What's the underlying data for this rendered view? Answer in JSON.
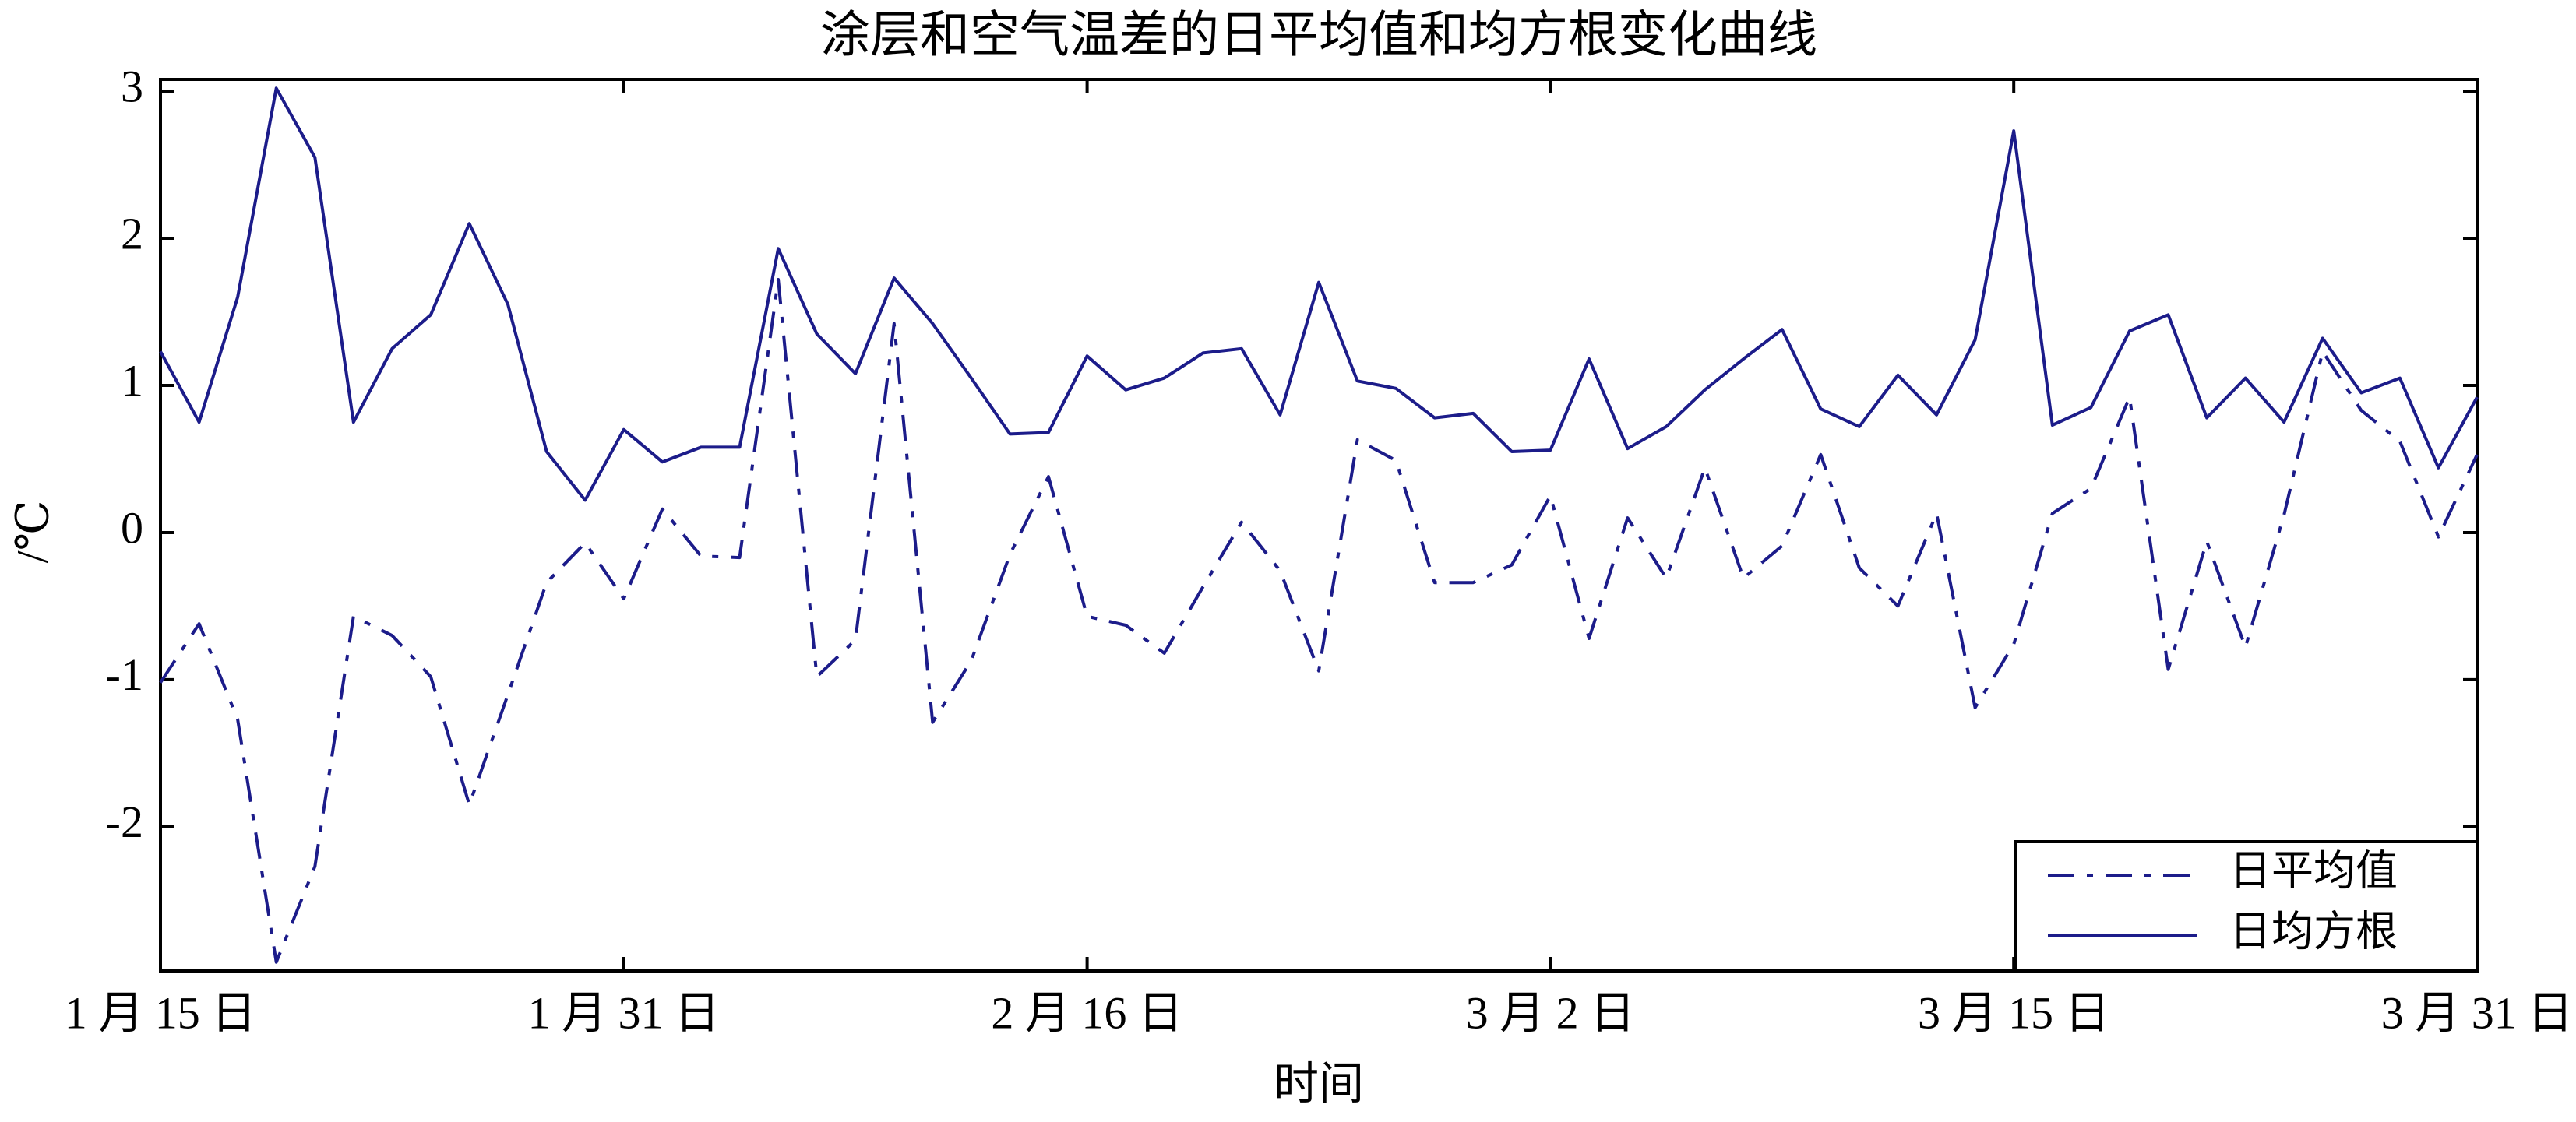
{
  "chart_data": {
    "type": "line",
    "title": "涂层和空气温差的日平均值和均方根变化曲线",
    "x_label": "时间",
    "y_label": "/℃",
    "x": [
      0,
      1,
      2,
      3,
      4,
      5,
      6,
      7,
      8,
      9,
      10,
      11,
      12,
      13,
      14,
      15,
      16,
      17,
      18,
      19,
      20,
      21,
      22,
      23,
      24,
      25,
      26,
      27,
      28,
      29,
      30,
      31,
      32,
      33,
      34,
      35,
      36,
      37,
      38,
      39,
      40,
      41,
      42,
      43,
      44,
      45,
      46,
      47,
      48,
      49,
      50,
      51,
      52,
      53,
      54,
      55,
      56,
      57,
      58,
      59,
      60
    ],
    "xlim": [
      0,
      60
    ],
    "xticks": [
      {
        "value": 0,
        "label": "1 月 15 日"
      },
      {
        "value": 12,
        "label": "1 月 31 日"
      },
      {
        "value": 24,
        "label": "2 月 16 日"
      },
      {
        "value": 36,
        "label": "3 月 2 日"
      },
      {
        "value": 48,
        "label": "3 月 15 日"
      },
      {
        "value": 60,
        "label": "3 月 31 日"
      }
    ],
    "ylim": [
      -2.98,
      3.08
    ],
    "yticks": [
      -2,
      -1,
      0,
      1,
      2,
      3
    ],
    "legend": "lower right",
    "series": [
      {
        "name": "日平均值",
        "color": "#1c1c8a",
        "style": "dashdot",
        "values": [
          -1.02,
          -0.62,
          -1.27,
          -2.92,
          -2.27,
          -0.57,
          -0.7,
          -0.98,
          -1.85,
          -1.1,
          -0.34,
          -0.07,
          -0.45,
          0.16,
          -0.16,
          -0.17,
          1.72,
          -0.98,
          -0.73,
          1.42,
          -1.29,
          -0.87,
          -0.15,
          0.38,
          -0.57,
          -0.63,
          -0.82,
          -0.37,
          0.07,
          -0.26,
          -0.94,
          0.63,
          0.49,
          -0.34,
          -0.34,
          -0.22,
          0.25,
          -0.72,
          0.1,
          -0.31,
          0.44,
          -0.31,
          -0.09,
          0.53,
          -0.24,
          -0.5,
          0.13,
          -1.19,
          -0.76,
          0.13,
          0.3,
          0.92,
          -0.93,
          -0.06,
          -0.78,
          0.12,
          1.23,
          0.83,
          0.62,
          -0.03,
          0.53
        ]
      },
      {
        "name": "日均方根",
        "color": "#1c1c8a",
        "style": "solid",
        "values": [
          1.23,
          0.75,
          1.6,
          3.02,
          2.55,
          0.75,
          1.25,
          1.48,
          2.1,
          1.55,
          0.55,
          0.22,
          0.7,
          0.48,
          0.58,
          0.58,
          1.93,
          1.35,
          1.08,
          1.73,
          1.42,
          1.05,
          0.67,
          0.68,
          1.2,
          0.97,
          1.05,
          1.22,
          1.25,
          0.8,
          1.7,
          1.03,
          0.98,
          0.78,
          0.81,
          0.55,
          0.56,
          1.18,
          0.57,
          0.72,
          0.97,
          1.18,
          1.38,
          0.84,
          0.72,
          1.07,
          0.8,
          1.31,
          2.73,
          0.73,
          0.85,
          1.37,
          1.48,
          0.78,
          1.05,
          0.75,
          1.32,
          0.95,
          1.05,
          0.44,
          0.92
        ]
      }
    ]
  }
}
